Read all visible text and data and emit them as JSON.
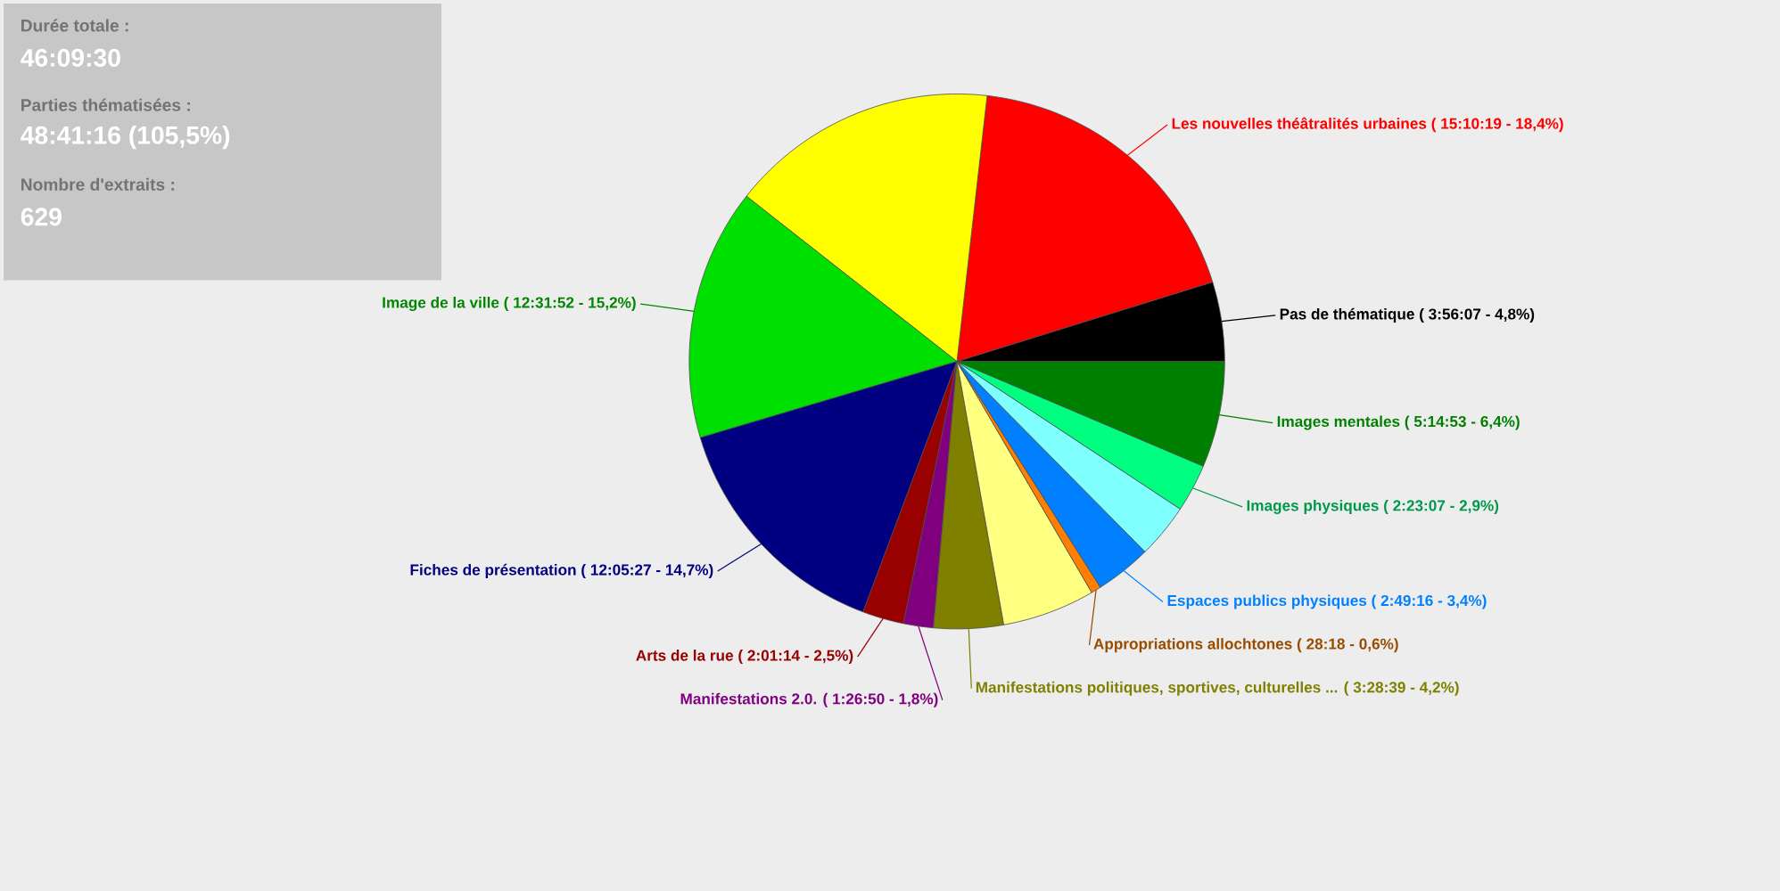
{
  "chart_data": {
    "type": "pie",
    "categories": [
      "Pas de thématique ( 3:56:07 - 4,8%)",
      "Les nouvelles théâtralités urbaines ( 15:10:19 - 18,4%)",
      null,
      "Image de la ville ( 12:31:52 - 15,2%)",
      "Fiches de présentation  ( 12:05:27 - 14,7%)",
      "Arts de la rue ( 2:01:14 - 2,5%)",
      "Manifestations 2.0. ( 1:26:50 - 1,8%)",
      "Manifestations politiques, sportives, culturelles ... ( 3:28:39 - 4,2%)",
      null,
      "Appropriations allochtones  ( 28:18 - 0,6%)",
      "Espaces publics physiques ( 2:49:16 - 3,4%)",
      null,
      "Images physiques ( 2:23:07 - 2,9%)",
      "Images mentales  ( 5:14:53 - 6,4%)"
    ],
    "values": [
      4.8,
      18.4,
      16.2,
      15.2,
      14.7,
      2.5,
      1.8,
      4.2,
      5.6,
      0.6,
      3.4,
      3.3,
      2.9,
      6.4
    ],
    "colors": [
      "#000000",
      "#ff0000",
      "#ffff00",
      "#00e000",
      "#000080",
      "#990000",
      "#800080",
      "#808000",
      "#ffff80",
      "#ff8000",
      "#0080ff",
      "#80ffff",
      "#00ff80",
      "#008000"
    ],
    "annotations": [
      "Durée totale :",
      "46:09:30",
      "Parties thématisées :",
      "48:41:16 (105,5%)",
      "Nombre d'extraits :",
      "629"
    ]
  }
}
